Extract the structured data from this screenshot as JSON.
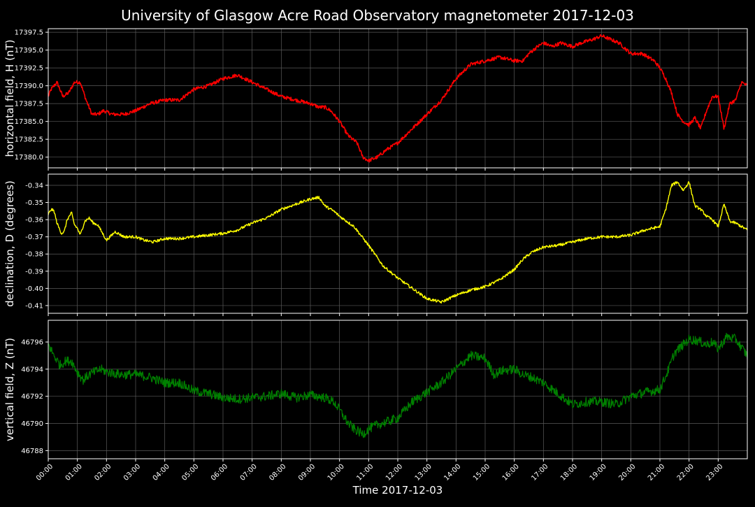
{
  "colors": {
    "background": "#000000",
    "foreground": "#ffffff",
    "grid": "#5a5a5a",
    "panel_border": "#ffffff"
  },
  "chart_data": {
    "type": "line",
    "title": "University of Glasgow Acre Road Observatory magnetometer 2017-12-03",
    "xlabel": "Time 2017-12-03",
    "x_ticks": [
      "00:00",
      "01:00",
      "02:00",
      "03:00",
      "04:00",
      "05:00",
      "06:00",
      "07:00",
      "08:00",
      "09:00",
      "10:00",
      "11:00",
      "12:00",
      "13:00",
      "14:00",
      "15:00",
      "16:00",
      "17:00",
      "18:00",
      "19:00",
      "20:00",
      "21:00",
      "22:00",
      "23:00"
    ],
    "xlim_hours": [
      0,
      24
    ],
    "grid": true,
    "legend": "none",
    "panels": [
      {
        "ylabel": "horizontal field, H (nT)",
        "color": "#ff0000",
        "ylim": [
          17378.5,
          17398.0
        ],
        "y_ticks": [
          "17380.0",
          "17382.5",
          "17385.0",
          "17387.5",
          "17390.0",
          "17392.5",
          "17395.0",
          "17397.5"
        ],
        "noise": 0.25,
        "linewidth": 1.6,
        "x": [
          0,
          0.1,
          0.3,
          0.5,
          0.7,
          0.9,
          1.1,
          1.3,
          1.5,
          1.7,
          1.9,
          2.2,
          2.6,
          3.0,
          3.5,
          4.0,
          4.5,
          5.0,
          5.5,
          6.0,
          6.5,
          7.0,
          7.5,
          8.0,
          8.5,
          9.0,
          9.3,
          9.5,
          9.7,
          10.0,
          10.3,
          10.6,
          10.8,
          11.0,
          11.3,
          11.6,
          12.0,
          12.5,
          13.0,
          13.5,
          14.0,
          14.5,
          15.0,
          15.5,
          16.0,
          16.3,
          16.5,
          16.8,
          17.0,
          17.3,
          17.6,
          18.0,
          18.3,
          18.7,
          19.0,
          19.3,
          19.6,
          20.0,
          20.4,
          20.8,
          21.0,
          21.2,
          21.4,
          21.6,
          21.8,
          22.0,
          22.2,
          22.4,
          22.6,
          22.8,
          23.0,
          23.2,
          23.4,
          23.6,
          23.8,
          24.0
        ],
        "y": [
          17388.5,
          17389.5,
          17390.5,
          17388.5,
          17389.0,
          17390.5,
          17390.5,
          17388.0,
          17386.0,
          17386.0,
          17386.5,
          17386.0,
          17386.0,
          17386.5,
          17387.5,
          17388.0,
          17388.0,
          17389.5,
          17390.0,
          17391.0,
          17391.5,
          17390.5,
          17389.5,
          17388.5,
          17388.0,
          17387.5,
          17387.0,
          17387.0,
          17386.5,
          17385.0,
          17383.0,
          17382.0,
          17380.0,
          17379.5,
          17380.0,
          17381.0,
          17382.0,
          17384.0,
          17386.0,
          17388.0,
          17391.0,
          17393.0,
          17393.5,
          17394.0,
          17393.5,
          17393.5,
          17394.5,
          17395.5,
          17396.0,
          17395.5,
          17396.0,
          17395.5,
          17396.0,
          17396.5,
          17397.0,
          17396.5,
          17396.0,
          17394.5,
          17394.5,
          17393.5,
          17392.5,
          17391.0,
          17389.0,
          17386.0,
          17385.0,
          17384.5,
          17385.5,
          17384.0,
          17386.5,
          17388.5,
          17388.5,
          17384.0,
          17387.5,
          17388.0,
          17390.5,
          17390.0
        ]
      },
      {
        "ylabel": "declination, D (degrees)",
        "color": "#ffff00",
        "ylim": [
          -0.4145,
          -0.3335
        ],
        "y_ticks": [
          "-0.41",
          "-0.40",
          "-0.39",
          "-0.38",
          "-0.37",
          "-0.36",
          "-0.35",
          "-0.34"
        ],
        "noise": 0.0008,
        "linewidth": 1.4,
        "x": [
          0,
          0.1,
          0.2,
          0.3,
          0.45,
          0.55,
          0.65,
          0.8,
          0.9,
          1.0,
          1.1,
          1.25,
          1.4,
          1.55,
          1.7,
          1.8,
          2.0,
          2.3,
          2.6,
          3.0,
          3.3,
          3.6,
          4.0,
          4.5,
          5.0,
          5.5,
          6.0,
          6.5,
          7.0,
          7.5,
          8.0,
          8.5,
          9.0,
          9.3,
          9.5,
          9.8,
          10.0,
          10.5,
          11.0,
          11.5,
          12.0,
          12.5,
          13.0,
          13.5,
          14.0,
          14.5,
          15.0,
          15.5,
          16.0,
          16.3,
          16.6,
          17.0,
          17.5,
          18.0,
          18.5,
          19.0,
          19.5,
          20.0,
          20.5,
          21.0,
          21.2,
          21.4,
          21.6,
          21.8,
          22.0,
          22.2,
          22.4,
          22.6,
          22.8,
          23.0,
          23.2,
          23.4,
          23.6,
          23.8,
          24.0
        ],
        "y": [
          -0.357,
          -0.354,
          -0.355,
          -0.362,
          -0.368,
          -0.367,
          -0.36,
          -0.356,
          -0.363,
          -0.365,
          -0.369,
          -0.361,
          -0.359,
          -0.362,
          -0.363,
          -0.366,
          -0.372,
          -0.367,
          -0.37,
          -0.37,
          -0.372,
          -0.373,
          -0.371,
          -0.371,
          -0.37,
          -0.369,
          -0.368,
          -0.366,
          -0.362,
          -0.359,
          -0.354,
          -0.351,
          -0.348,
          -0.347,
          -0.352,
          -0.355,
          -0.358,
          -0.364,
          -0.375,
          -0.387,
          -0.394,
          -0.4,
          -0.406,
          -0.408,
          -0.404,
          -0.401,
          -0.399,
          -0.395,
          -0.389,
          -0.383,
          -0.379,
          -0.376,
          -0.375,
          -0.373,
          -0.371,
          -0.37,
          -0.37,
          -0.369,
          -0.366,
          -0.364,
          -0.354,
          -0.34,
          -0.338,
          -0.343,
          -0.338,
          -0.352,
          -0.354,
          -0.358,
          -0.36,
          -0.364,
          -0.351,
          -0.361,
          -0.362,
          -0.364,
          -0.366
        ]
      },
      {
        "ylabel": "vertical field, Z (nT)",
        "color": "#008000",
        "ylim": [
          46787.4,
          46797.6
        ],
        "y_ticks": [
          "46788",
          "46790",
          "46792",
          "46794",
          "46796"
        ],
        "noise": 0.35,
        "linewidth": 1.2,
        "x": [
          0,
          0.2,
          0.4,
          0.6,
          0.8,
          1.0,
          1.2,
          1.4,
          1.6,
          1.8,
          2.0,
          2.5,
          3.0,
          3.5,
          4.0,
          4.5,
          5.0,
          5.5,
          6.0,
          6.5,
          7.0,
          7.5,
          8.0,
          8.5,
          9.0,
          9.5,
          9.8,
          10.0,
          10.3,
          10.5,
          10.8,
          11.0,
          11.3,
          11.6,
          12.0,
          12.5,
          13.0,
          13.5,
          14.0,
          14.5,
          15.0,
          15.3,
          15.6,
          16.0,
          16.3,
          16.6,
          17.0,
          17.5,
          18.0,
          18.5,
          19.0,
          19.5,
          20.0,
          20.5,
          21.0,
          21.3,
          21.5,
          21.8,
          22.0,
          22.3,
          22.6,
          22.8,
          23.0,
          23.3,
          23.6,
          24.0
        ],
        "y": [
          46795.8,
          46795.0,
          46794.3,
          46794.6,
          46794.6,
          46793.8,
          46793.2,
          46793.6,
          46793.8,
          46794.0,
          46793.8,
          46793.6,
          46793.6,
          46793.4,
          46793.0,
          46793.0,
          46792.4,
          46792.2,
          46791.9,
          46791.8,
          46791.9,
          46792.0,
          46792.2,
          46791.9,
          46792.1,
          46791.9,
          46791.6,
          46791.0,
          46790.0,
          46789.6,
          46789.2,
          46789.6,
          46789.9,
          46790.1,
          46790.4,
          46791.6,
          46792.3,
          46793.0,
          46794.0,
          46795.0,
          46794.8,
          46793.6,
          46793.9,
          46794.0,
          46793.6,
          46793.4,
          46793.0,
          46792.2,
          46791.4,
          46791.6,
          46791.6,
          46791.4,
          46792.0,
          46792.3,
          46792.5,
          46794.0,
          46795.2,
          46795.8,
          46796.2,
          46796.1,
          46795.8,
          46796.0,
          46795.5,
          46796.4,
          46796.2,
          46795.0
        ]
      }
    ]
  }
}
